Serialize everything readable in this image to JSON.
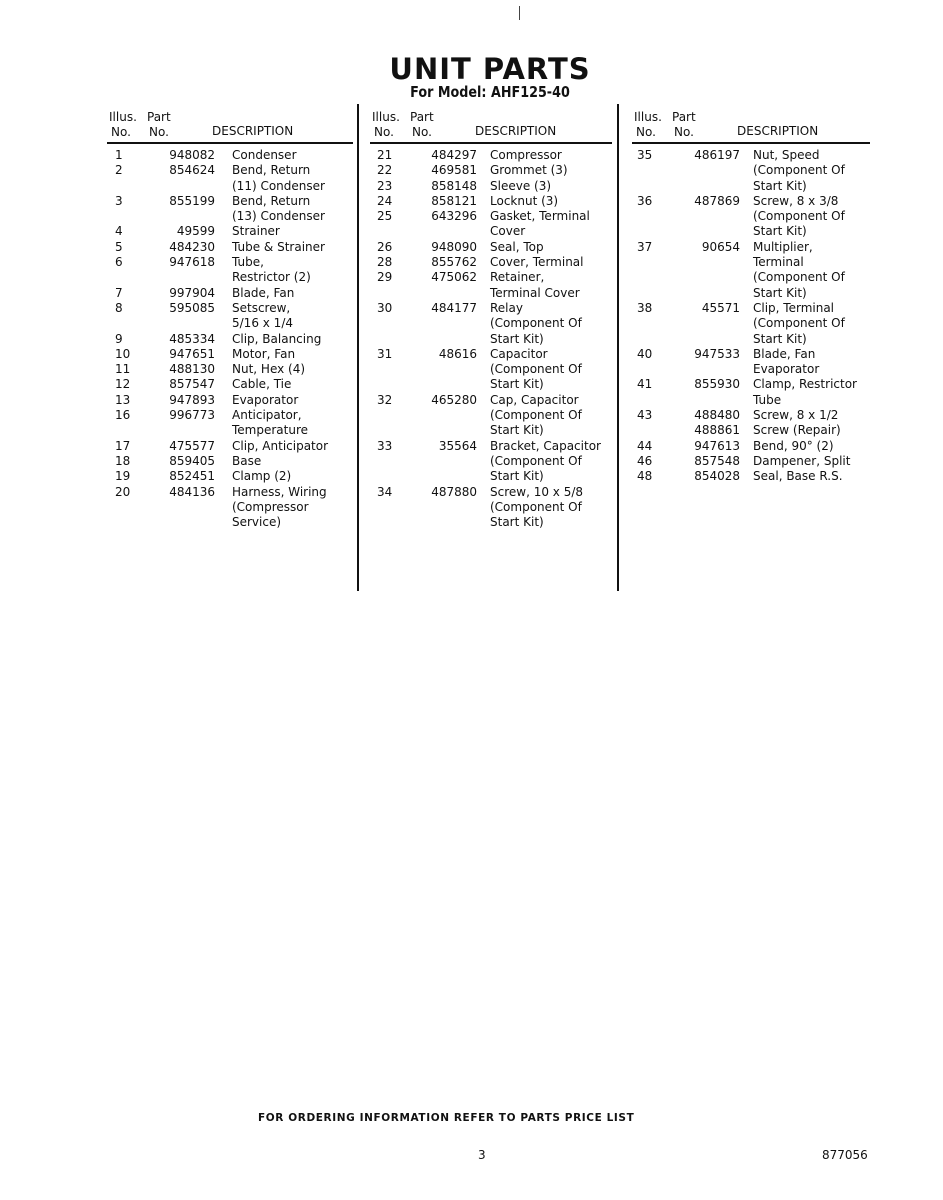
{
  "title": "UNIT PARTS",
  "subtitle": "For Model: AHF125-40",
  "headers": {
    "illus": "Illus.",
    "no": "No.",
    "part": "Part",
    "part_no": "No.",
    "description": "DESCRIPTION"
  },
  "columns": [
    [
      {
        "no": "1",
        "part": "948082",
        "desc": [
          "Condenser"
        ]
      },
      {
        "no": "2",
        "part": "854624",
        "desc": [
          "Bend, Return",
          "(11) Condenser"
        ]
      },
      {
        "no": "3",
        "part": "855199",
        "desc": [
          "Bend, Return",
          "(13) Condenser"
        ]
      },
      {
        "no": "4",
        "part": "49599",
        "desc": [
          "Strainer"
        ]
      },
      {
        "no": "5",
        "part": "484230",
        "desc": [
          "Tube & Strainer"
        ]
      },
      {
        "no": "6",
        "part": "947618",
        "desc": [
          "Tube,",
          "Restrictor (2)"
        ]
      },
      {
        "no": "7",
        "part": "997904",
        "desc": [
          "Blade, Fan"
        ]
      },
      {
        "no": "8",
        "part": "595085",
        "desc": [
          "Setscrew,",
          "5/16 x 1/4"
        ]
      },
      {
        "no": "9",
        "part": "485334",
        "desc": [
          "Clip, Balancing"
        ]
      },
      {
        "no": "10",
        "part": "947651",
        "desc": [
          "Motor, Fan"
        ]
      },
      {
        "no": "11",
        "part": "488130",
        "desc": [
          "Nut, Hex (4)"
        ]
      },
      {
        "no": "12",
        "part": "857547",
        "desc": [
          "Cable, Tie"
        ]
      },
      {
        "no": "13",
        "part": "947893",
        "desc": [
          "Evaporator"
        ]
      },
      {
        "no": "16",
        "part": "996773",
        "desc": [
          "Anticipator,",
          "Temperature"
        ]
      },
      {
        "no": "17",
        "part": "475577",
        "desc": [
          "Clip, Anticipator"
        ]
      },
      {
        "no": "18",
        "part": "859405",
        "desc": [
          "Base"
        ]
      },
      {
        "no": "19",
        "part": "852451",
        "desc": [
          "Clamp (2)"
        ]
      },
      {
        "no": "20",
        "part": "484136",
        "desc": [
          "Harness, Wiring",
          "(Compressor",
          "Service)"
        ]
      }
    ],
    [
      {
        "no": "21",
        "part": "484297",
        "desc": [
          "Compressor"
        ]
      },
      {
        "no": "22",
        "part": "469581",
        "desc": [
          "Grommet (3)"
        ]
      },
      {
        "no": "23",
        "part": "858148",
        "desc": [
          "Sleeve (3)"
        ]
      },
      {
        "no": "24",
        "part": "858121",
        "desc": [
          "Locknut (3)"
        ]
      },
      {
        "no": "25",
        "part": "643296",
        "desc": [
          "Gasket, Terminal",
          "Cover"
        ]
      },
      {
        "no": "26",
        "part": "948090",
        "desc": [
          "Seal, Top"
        ]
      },
      {
        "no": "28",
        "part": "855762",
        "desc": [
          "Cover, Terminal"
        ]
      },
      {
        "no": "29",
        "part": "475062",
        "desc": [
          "Retainer,",
          "Terminal Cover"
        ]
      },
      {
        "no": "30",
        "part": "484177",
        "desc": [
          "Relay",
          "(Component Of",
          "Start Kit)"
        ]
      },
      {
        "no": "31",
        "part": "48616",
        "desc": [
          "Capacitor",
          "(Component Of",
          "Start Kit)"
        ]
      },
      {
        "no": "32",
        "part": "465280",
        "desc": [
          "Cap, Capacitor",
          "(Component Of",
          "Start Kit)"
        ]
      },
      {
        "no": "33",
        "part": "35564",
        "desc": [
          "Bracket, Capacitor",
          "(Component Of",
          "Start Kit)"
        ]
      },
      {
        "no": "34",
        "part": "487880",
        "desc": [
          "Screw, 10 x 5/8",
          "(Component Of",
          "Start Kit)"
        ]
      }
    ],
    [
      {
        "no": "35",
        "part": "486197",
        "desc": [
          "Nut, Speed",
          "(Component Of",
          "Start Kit)"
        ]
      },
      {
        "no": "36",
        "part": "487869",
        "desc": [
          "Screw, 8 x 3/8",
          "(Component Of",
          "Start Kit)"
        ]
      },
      {
        "no": "37",
        "part": "90654",
        "desc": [
          "Multiplier,",
          "Terminal",
          "(Component Of",
          "Start Kit)"
        ]
      },
      {
        "no": "38",
        "part": "45571",
        "desc": [
          "Clip, Terminal",
          "(Component Of",
          "Start Kit)"
        ]
      },
      {
        "no": "40",
        "part": "947533",
        "desc": [
          "Blade, Fan",
          "Evaporator"
        ]
      },
      {
        "no": "41",
        "part": "855930",
        "desc": [
          "Clamp, Restrictor",
          "Tube"
        ]
      },
      {
        "no": "43",
        "part": "488480",
        "desc": [
          "Screw, 8 x 1/2"
        ]
      },
      {
        "no": "",
        "part": "488861",
        "desc": [
          "Screw (Repair)"
        ]
      },
      {
        "no": "44",
        "part": "947613",
        "desc": [
          "Bend, 90° (2)"
        ]
      },
      {
        "no": "46",
        "part": "857548",
        "desc": [
          "Dampener, Split"
        ]
      },
      {
        "no": "48",
        "part": "854028",
        "desc": [
          "Seal, Base R.S."
        ]
      }
    ]
  ],
  "footer": "FOR ORDERING INFORMATION REFER TO PARTS PRICE LIST",
  "page_number": "3",
  "document_number": "877056"
}
